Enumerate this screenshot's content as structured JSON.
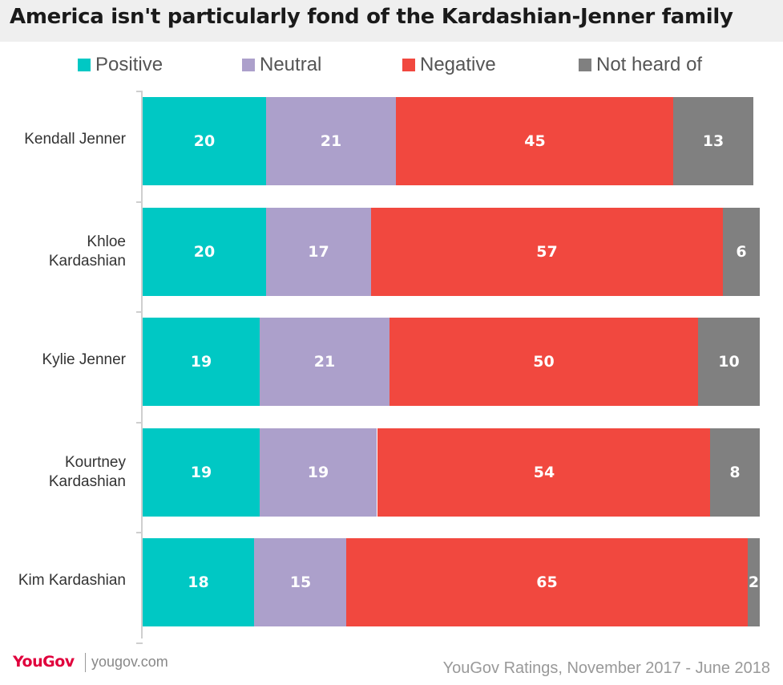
{
  "chart_data": {
    "type": "bar",
    "orientation": "horizontal",
    "stacked": true,
    "title": "America isn't particularly fond of the Kardashian-Jenner family",
    "categories": [
      "Kendall Jenner",
      "Khloe Kardashian",
      "Kylie Jenner",
      "Kourtney Kardashian",
      "Kim Kardashian"
    ],
    "series": [
      {
        "name": "Positive",
        "color": "#00c8c4",
        "values": [
          20,
          20,
          19,
          19,
          18
        ]
      },
      {
        "name": "Neutral",
        "color": "#aca0cb",
        "values": [
          21,
          17,
          21,
          19,
          15
        ]
      },
      {
        "name": "Negative",
        "color": "#f1483f",
        "values": [
          45,
          57,
          50,
          54,
          65
        ]
      },
      {
        "name": "Not heard of",
        "color": "#808080",
        "values": [
          13,
          6,
          10,
          8,
          2
        ]
      }
    ],
    "legend_position": "top",
    "data_labels": true,
    "grid": false
  },
  "legend": [
    {
      "label": "Positive",
      "color": "#00c8c4"
    },
    {
      "label": "Neutral",
      "color": "#aca0cb"
    },
    {
      "label": "Negative",
      "color": "#f1483f"
    },
    {
      "label": "Not heard of",
      "color": "#808080"
    }
  ],
  "footer": {
    "logo": "YouGov",
    "site": "yougov.com",
    "source": "YouGov Ratings, November 2017 - June 2018"
  }
}
